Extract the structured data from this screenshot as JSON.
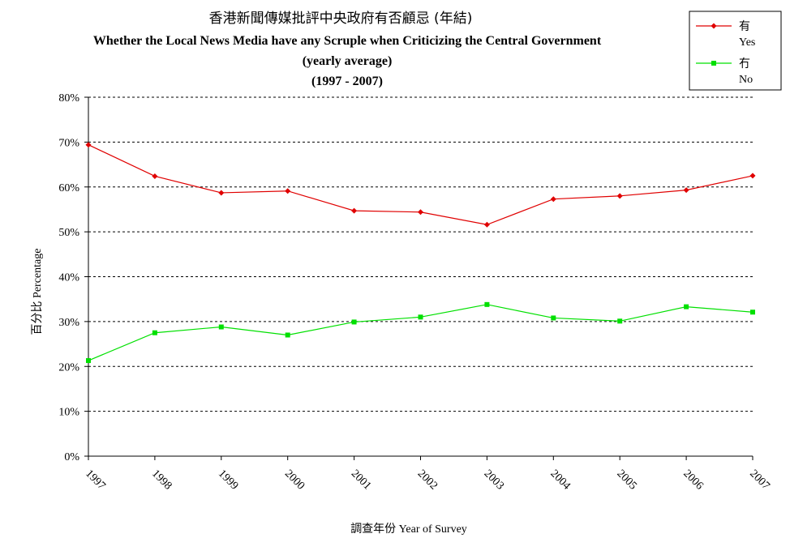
{
  "chart_data": {
    "type": "line",
    "title_lines": [
      "香港新聞傳媒批評中央政府有否顧忌 (年結)",
      "Whether the Local News Media have any Scruple when Criticizing the Central Government",
      "(yearly average)",
      "(1997 - 2007)"
    ],
    "xlabel": "調查年份 Year of Survey",
    "ylabel": "百分比 Percentage",
    "categories": [
      "1997",
      "1998",
      "1999",
      "2000",
      "2001",
      "2002",
      "2003",
      "2004",
      "2005",
      "2006",
      "2007"
    ],
    "ylim": [
      0,
      80
    ],
    "y_ticks": [
      "0%",
      "10%",
      "20%",
      "30%",
      "40%",
      "50%",
      "60%",
      "70%",
      "80%"
    ],
    "grid": "horizontal dashed",
    "legend_position": "top-right",
    "series": [
      {
        "name_zh": "有",
        "name_en": "Yes",
        "color": "#e00000",
        "marker": "diamond",
        "values": [
          69.4,
          62.4,
          58.7,
          59.1,
          54.7,
          54.4,
          51.6,
          57.3,
          58.0,
          59.3,
          62.5
        ]
      },
      {
        "name_zh": "冇",
        "name_en": "No",
        "color": "#00e000",
        "marker": "square",
        "values": [
          21.3,
          27.5,
          28.8,
          27.0,
          29.9,
          31.0,
          33.8,
          30.8,
          30.1,
          33.3,
          32.1
        ]
      }
    ]
  }
}
